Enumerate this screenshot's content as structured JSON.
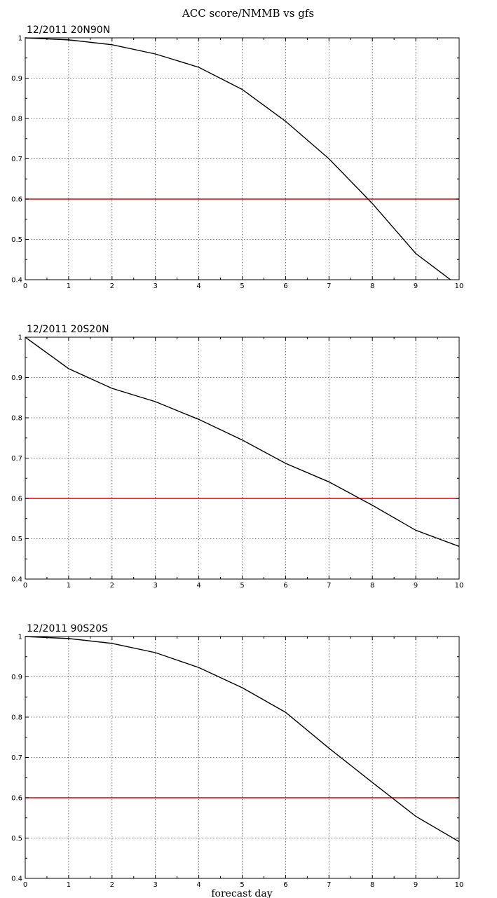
{
  "figure": {
    "title": "ACC score/NMMB vs gfs",
    "xlabel": "forecast day"
  },
  "colors": {
    "series": "#000000",
    "reference_line": "#e00000"
  },
  "chart_data": [
    {
      "type": "line",
      "title": "12/2011 20N90N",
      "xlabel": "",
      "ylabel": "",
      "xlim": [
        0,
        10
      ],
      "ylim": [
        0.4,
        1.0
      ],
      "xticks": [
        0,
        1,
        2,
        3,
        4,
        5,
        6,
        7,
        8,
        9,
        10
      ],
      "yticks": [
        0.4,
        0.5,
        0.6,
        0.7,
        0.8,
        0.9,
        1
      ],
      "grid": true,
      "series": [
        {
          "x": [
            0,
            1,
            2,
            3,
            4,
            5,
            6,
            7,
            8,
            9,
            9.8
          ],
          "values": [
            1.0,
            0.995,
            0.983,
            0.96,
            0.927,
            0.872,
            0.793,
            0.7,
            0.589,
            0.465,
            0.4
          ]
        }
      ],
      "reference_line": 0.6
    },
    {
      "type": "line",
      "title": "12/2011 20S20N",
      "xlabel": "",
      "ylabel": "",
      "xlim": [
        0,
        10
      ],
      "ylim": [
        0.4,
        1.0
      ],
      "xticks": [
        0,
        1,
        2,
        3,
        4,
        5,
        6,
        7,
        8,
        9,
        10
      ],
      "yticks": [
        0.4,
        0.5,
        0.6,
        0.7,
        0.8,
        0.9,
        1
      ],
      "grid": true,
      "series": [
        {
          "x": [
            0,
            1,
            2,
            3,
            4,
            5,
            6,
            7,
            8,
            9,
            10
          ],
          "values": [
            1.0,
            0.922,
            0.873,
            0.84,
            0.796,
            0.745,
            0.687,
            0.641,
            0.583,
            0.521,
            0.481
          ]
        }
      ],
      "reference_line": 0.6
    },
    {
      "type": "line",
      "title": "12/2011 90S20S",
      "xlabel": "",
      "ylabel": "",
      "xlim": [
        0,
        10
      ],
      "ylim": [
        0.4,
        1.0
      ],
      "xticks": [
        0,
        1,
        2,
        3,
        4,
        5,
        6,
        7,
        8,
        9,
        10
      ],
      "yticks": [
        0.4,
        0.5,
        0.6,
        0.7,
        0.8,
        0.9,
        1
      ],
      "grid": true,
      "series": [
        {
          "x": [
            0,
            1,
            2,
            3,
            4,
            5,
            6,
            7,
            8,
            9,
            10
          ],
          "values": [
            1.0,
            0.995,
            0.983,
            0.96,
            0.923,
            0.873,
            0.812,
            0.723,
            0.638,
            0.554,
            0.491
          ]
        }
      ],
      "reference_line": 0.6
    }
  ]
}
